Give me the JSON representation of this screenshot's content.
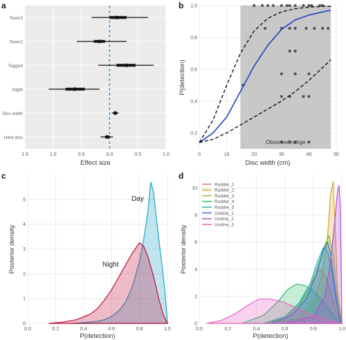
{
  "chart_data": [
    {
      "panel": "a",
      "type": "forest",
      "xlabel": "Effect size",
      "ylabel": "",
      "xlim": [
        -1.5,
        1.0
      ],
      "xticks": [
        "1.5",
        "1.0",
        "0.5",
        "0.0",
        "0.5",
        "1.0"
      ],
      "xtick_values": [
        -1.5,
        -1.0,
        -0.5,
        0.0,
        0.5,
        1.0
      ],
      "reference_line": 0.0,
      "grid": true,
      "categories": [
        "Team3",
        "Team2",
        "Tagged",
        "Night",
        "Disc width",
        "Hard disc"
      ],
      "estimates": [
        0.13,
        -0.18,
        0.3,
        -0.62,
        0.1,
        -0.04
      ],
      "inner_interval": [
        [
          0.0,
          0.3
        ],
        [
          -0.28,
          -0.08
        ],
        [
          0.12,
          0.46
        ],
        [
          -0.78,
          -0.44
        ],
        [
          0.07,
          0.13
        ],
        [
          -0.08,
          0.0
        ]
      ],
      "outer_interval": [
        [
          -0.32,
          0.68
        ],
        [
          -0.58,
          0.3
        ],
        [
          -0.2,
          0.78
        ],
        [
          -1.08,
          -0.18
        ],
        [
          0.04,
          0.16
        ],
        [
          -0.16,
          0.06
        ]
      ],
      "colors": {
        "interval": "#111111",
        "reference": "#1e90d6"
      }
    },
    {
      "panel": "b",
      "type": "line",
      "xlabel": "Disc width (cm)",
      "ylabel": "P(detection)",
      "xlim": [
        0,
        50
      ],
      "ylim": [
        0.1,
        1.0
      ],
      "xticks": [
        "0",
        "10",
        "20",
        "30",
        "40",
        "50"
      ],
      "yticks": [
        "0.2",
        "0.4",
        "0.6",
        "0.8",
        "1.0"
      ],
      "shaded_region": {
        "x": [
          15,
          48
        ],
        "label": "Observed range",
        "color": "#c8c8c8"
      },
      "series": [
        {
          "role": "fit",
          "color": "#1f3fbf",
          "x": [
            0,
            5,
            10,
            15,
            20,
            25,
            30,
            35,
            40,
            45,
            48
          ],
          "y": [
            0.14,
            0.2,
            0.3,
            0.46,
            0.62,
            0.75,
            0.85,
            0.91,
            0.94,
            0.96,
            0.97
          ]
        },
        {
          "role": "upper",
          "style": "dashed",
          "color": "#111111",
          "x": [
            0,
            5,
            10,
            15,
            20,
            25,
            30,
            35,
            40,
            45,
            48
          ],
          "y": [
            0.14,
            0.28,
            0.5,
            0.7,
            0.84,
            0.92,
            0.96,
            0.98,
            0.99,
            0.995,
            0.995
          ]
        },
        {
          "role": "lower",
          "style": "dashed",
          "color": "#111111",
          "x": [
            0,
            5,
            10,
            15,
            20,
            25,
            30,
            35,
            40,
            45,
            48
          ],
          "y": [
            0.14,
            0.16,
            0.2,
            0.25,
            0.3,
            0.35,
            0.4,
            0.46,
            0.53,
            0.61,
            0.66
          ]
        }
      ],
      "points": {
        "color": "#333333",
        "x": [
          20,
          23,
          25,
          27,
          30,
          32,
          33,
          35,
          38,
          40,
          41,
          44,
          45,
          24,
          30,
          33,
          35,
          39,
          42,
          45,
          47,
          33,
          35,
          30,
          35,
          40,
          16,
          30,
          33,
          38,
          40,
          30,
          33,
          35,
          40
        ],
        "y": [
          1.0,
          1.0,
          1.0,
          1.0,
          1.0,
          1.0,
          1.0,
          1.0,
          1.0,
          1.0,
          1.0,
          1.0,
          1.0,
          0.857,
          0.857,
          0.857,
          0.857,
          0.857,
          0.857,
          0.857,
          0.857,
          0.714,
          0.714,
          0.571,
          0.571,
          0.571,
          0.5,
          0.429,
          0.429,
          0.429,
          0.429,
          0.143,
          0.143,
          0.143,
          0.143
        ]
      }
    },
    {
      "panel": "c",
      "type": "area",
      "xlabel": "P(detection)",
      "ylabel": "Posterior density",
      "xlim": [
        0.0,
        1.0
      ],
      "ylim": [
        0,
        6
      ],
      "xticks": [
        "0.0",
        "0.2",
        "0.4",
        "0.6",
        "0.8",
        "1.0"
      ],
      "yticks": [
        "0",
        "1",
        "2",
        "3",
        "4",
        "5"
      ],
      "series": [
        {
          "name": "Day",
          "color": "#1fa3c4",
          "x": [
            0.3,
            0.4,
            0.5,
            0.55,
            0.6,
            0.65,
            0.7,
            0.75,
            0.8,
            0.83,
            0.86,
            0.88,
            0.9,
            0.92,
            0.94,
            0.96,
            0.98,
            1.0
          ],
          "y": [
            0,
            0.03,
            0.08,
            0.15,
            0.28,
            0.5,
            0.85,
            1.5,
            2.5,
            3.4,
            4.5,
            5.7,
            5.3,
            4.3,
            3.3,
            2.4,
            1.4,
            0
          ]
        },
        {
          "name": "Night",
          "color": "#c0103a",
          "x": [
            0.15,
            0.25,
            0.35,
            0.45,
            0.5,
            0.55,
            0.6,
            0.65,
            0.7,
            0.75,
            0.8,
            0.83,
            0.86,
            0.9,
            0.94,
            0.97,
            1.0
          ],
          "y": [
            0,
            0.05,
            0.15,
            0.38,
            0.6,
            0.95,
            1.35,
            1.85,
            2.35,
            2.85,
            3.25,
            3.1,
            2.7,
            1.9,
            0.95,
            0.35,
            0
          ]
        }
      ]
    },
    {
      "panel": "d",
      "type": "area",
      "xlabel": "P(detection)",
      "ylabel": "Posterior density",
      "xlim": [
        0.0,
        1.0
      ],
      "ylim": [
        0,
        11
      ],
      "xticks": [
        "0.0",
        "0.2",
        "0.4",
        "0.6",
        "0.8",
        "1.0"
      ],
      "yticks": [
        "0",
        "2",
        "4",
        "6",
        "8",
        "10"
      ],
      "legend": "top-left",
      "series": [
        {
          "name": "Rudder_1",
          "color": "#f06a6a",
          "x": [
            0.45,
            0.6,
            0.7,
            0.78,
            0.84,
            0.88,
            0.92,
            0.96,
            1.0
          ],
          "y": [
            0,
            0.3,
            1.2,
            2.8,
            4.0,
            3.6,
            2.4,
            0.8,
            0
          ]
        },
        {
          "name": "Rudder_2",
          "color": "#d9a830",
          "x": [
            0.5,
            0.7,
            0.8,
            0.86,
            0.9,
            0.92,
            0.94,
            0.95,
            0.97,
            1.0
          ],
          "y": [
            0,
            0.4,
            1.5,
            3.5,
            6.5,
            9.5,
            10.5,
            8.0,
            2.5,
            0
          ]
        },
        {
          "name": "Rudder_3",
          "color": "#8cc63f",
          "x": [
            0.45,
            0.6,
            0.7,
            0.78,
            0.84,
            0.88,
            0.91,
            0.94,
            0.97,
            1.0
          ],
          "y": [
            0,
            0.4,
            1.4,
            2.8,
            4.5,
            5.8,
            6.5,
            5.0,
            1.8,
            0
          ]
        },
        {
          "name": "Rudder_4",
          "color": "#2dbf70",
          "x": [
            0.3,
            0.45,
            0.55,
            0.62,
            0.68,
            0.74,
            0.8,
            0.86,
            0.92,
            0.97,
            1.0
          ],
          "y": [
            0,
            0.6,
            1.6,
            2.5,
            2.9,
            2.8,
            2.4,
            1.7,
            0.9,
            0.2,
            0
          ]
        },
        {
          "name": "Rudder_5",
          "color": "#22b5bd",
          "x": [
            0.45,
            0.6,
            0.7,
            0.78,
            0.83,
            0.87,
            0.9,
            0.93,
            0.96,
            1.0
          ],
          "y": [
            0,
            0.5,
            1.5,
            3.0,
            4.6,
            5.6,
            5.3,
            3.9,
            1.6,
            0
          ]
        },
        {
          "name": "Undine_1",
          "color": "#3a6fd8",
          "x": [
            0.5,
            0.65,
            0.75,
            0.82,
            0.87,
            0.9,
            0.92,
            0.95,
            0.98,
            1.0
          ],
          "y": [
            0,
            0.6,
            1.8,
            3.6,
            5.4,
            6.0,
            5.2,
            2.8,
            0.6,
            0
          ]
        },
        {
          "name": "Undine_2",
          "color": "#b04fd6",
          "x": [
            0.6,
            0.8,
            0.88,
            0.92,
            0.95,
            0.97,
            0.98,
            0.99,
            1.0
          ],
          "y": [
            0,
            0.5,
            2.0,
            4.5,
            7.5,
            9.8,
            10.2,
            8.5,
            0
          ]
        },
        {
          "name": "Undine_3",
          "color": "#e860c0",
          "x": [
            0.05,
            0.15,
            0.25,
            0.35,
            0.42,
            0.5,
            0.58,
            0.65,
            0.75,
            0.85,
            0.95,
            1.0
          ],
          "y": [
            0,
            0.2,
            0.7,
            1.4,
            1.8,
            1.8,
            1.6,
            1.3,
            0.8,
            0.4,
            0.1,
            0
          ]
        }
      ]
    }
  ]
}
